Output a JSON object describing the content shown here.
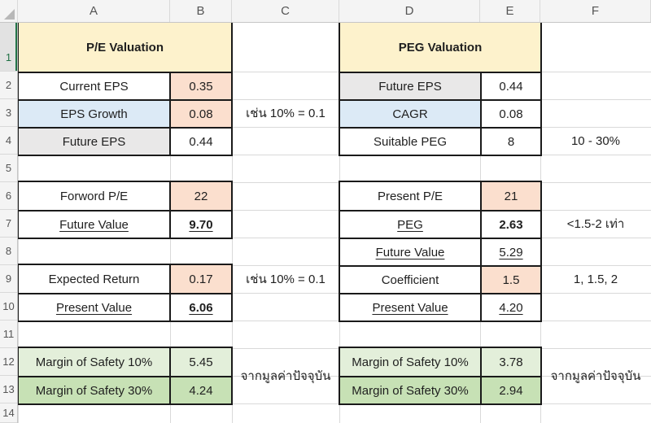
{
  "sheet": {
    "columns": [
      "A",
      "B",
      "C",
      "D",
      "E",
      "F"
    ],
    "rows": [
      "1",
      "2",
      "3",
      "4",
      "5",
      "6",
      "7",
      "8",
      "9",
      "10",
      "11",
      "12",
      "13",
      "14"
    ]
  },
  "pe": {
    "title": "P/E Valuation",
    "inputs": [
      {
        "label": "Current EPS",
        "value": "0.35"
      },
      {
        "label": "EPS Growth",
        "value": "0.08"
      },
      {
        "label": "Future EPS",
        "value": "0.44"
      }
    ],
    "forward": [
      {
        "label": "Forword P/E",
        "value": "22"
      },
      {
        "label": "Future Value",
        "value": "9.70"
      }
    ],
    "present": [
      {
        "label": "Expected Return",
        "value": "0.17"
      },
      {
        "label": "Present Value",
        "value": "6.06"
      }
    ],
    "margin": [
      {
        "label": "Margin of Safety 10%",
        "value": "5.45"
      },
      {
        "label": "Margin of Safety 30%",
        "value": "4.24"
      }
    ]
  },
  "peg": {
    "title": "PEG Valuation",
    "inputs": [
      {
        "label": "Future EPS",
        "value": "0.44"
      },
      {
        "label": "CAGR",
        "value": "0.08"
      },
      {
        "label": "Suitable PEG",
        "value": "8"
      }
    ],
    "main": [
      {
        "label": "Present P/E",
        "value": "21"
      },
      {
        "label": "PEG",
        "value": "2.63"
      },
      {
        "label": "Future Value",
        "value": "5.29"
      },
      {
        "label": "Coefficient",
        "value": "1.5"
      },
      {
        "label": "Present Value",
        "value": "4.20"
      }
    ],
    "margin": [
      {
        "label": "Margin of Safety 10%",
        "value": "3.78"
      },
      {
        "label": "Margin of Safety 30%",
        "value": "2.94"
      }
    ]
  },
  "notes": {
    "eps_growth_hint": "เช่น 10% = 0.1",
    "expected_return_hint": "เช่น 10% = 0.1",
    "peg_range_hint": "10 - 30%",
    "peg_ratio_hint": "<1.5-2 เท่า",
    "coefficient_hint": "1, 1.5, 2",
    "pe_margin_hint": "จากมูลค่าปัจจุบัน",
    "peg_margin_hint": "จากมูลค่าปัจจุบัน"
  },
  "colors": {
    "title_fill": "#FDF2CC",
    "input_fill": "#FBDFCE",
    "blue_fill": "#DCEAF6",
    "gray_fill": "#E9E8E8",
    "green_light_fill": "#E3EFDA",
    "green_medium_fill": "#C7E1B5",
    "selection_accent": "#217346",
    "table_border": "#1A1A1A",
    "gridline": "#D9D9D9"
  }
}
